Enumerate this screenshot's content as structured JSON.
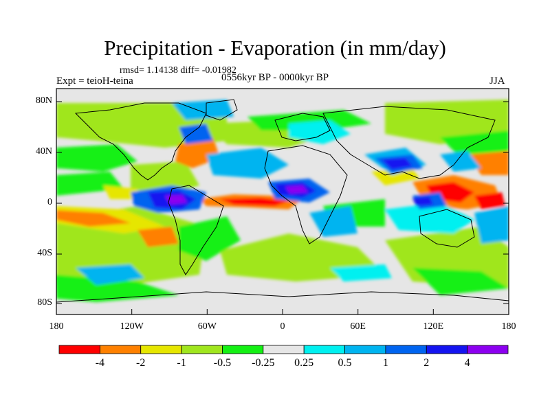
{
  "title": "Precipitation - Evaporation (in mm/day)",
  "stats": "rmsd= 1.14138 diff= -0.01982",
  "experiment": "Expt = teioH-teina",
  "period": "0556kyr BP - 0000kyr BP",
  "season": "JJA",
  "lat_labels": [
    "80N",
    "40N",
    "0",
    "40S",
    "80S"
  ],
  "lon_labels": [
    "180",
    "120W",
    "60W",
    "0",
    "60E",
    "120E",
    "180"
  ],
  "colorbar": {
    "colors": [
      "#ff0000",
      "#ff8000",
      "#e6e600",
      "#a0e61e",
      "#14f014",
      "#e6e6e6",
      "#00f0f0",
      "#00b4f0",
      "#0064f0",
      "#1414f0",
      "#8c00f0"
    ],
    "labels": [
      "-4",
      "-2",
      "-1",
      "-0.5",
      "-0.25",
      "0.25",
      "0.5",
      "1",
      "2",
      "4"
    ]
  },
  "map_background": "#e6e6e6"
}
